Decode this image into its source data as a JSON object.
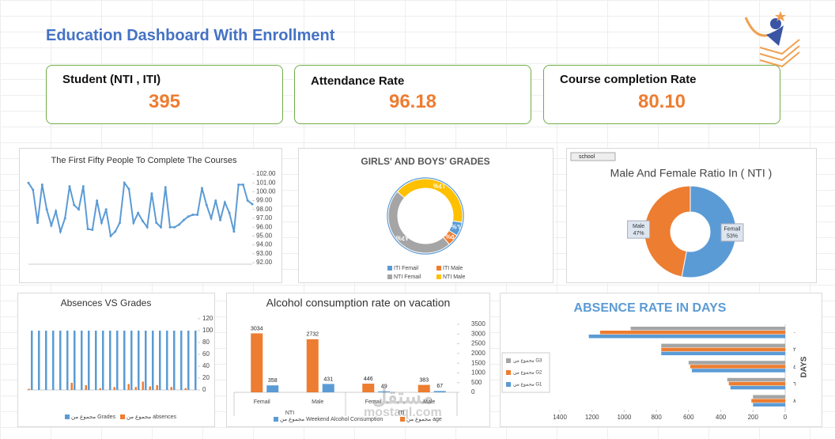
{
  "title": "Education Dashboard With Enrollment",
  "kpis": [
    {
      "label": "Student (NTI , ITI)",
      "value": "395"
    },
    {
      "label": "Attendance Rate",
      "value": "96.18"
    },
    {
      "label": "Course completion Rate",
      "value": "80.10"
    }
  ],
  "watermark": [
    "مستقل",
    "mostaql.com"
  ],
  "chart_data": [
    {
      "type": "line",
      "title": "The First Fifty People To Complete The Courses",
      "color": "#5b9bd5",
      "values": [
        101,
        100.2,
        96.5,
        100.8,
        98,
        96.2,
        97.8,
        95.5,
        97,
        100.6,
        98.5,
        98,
        100.6,
        95.8,
        95.7,
        99,
        96.5,
        98,
        95,
        95.5,
        96.5,
        101,
        100.3,
        96.5,
        97.6,
        96.7,
        96,
        99.8,
        96.5,
        96,
        100.5,
        96,
        96,
        96.3,
        96.8,
        97.2,
        97.4,
        97.4,
        100.4,
        98.5,
        97,
        99,
        96.8,
        98.8,
        97.6,
        95.5,
        100.8,
        100.8,
        99,
        98.6
      ],
      "ylim": [
        92,
        102
      ],
      "yticks": [
        {
          "value": 92,
          "label": "92.00"
        },
        {
          "value": 93,
          "label": "93.00"
        },
        {
          "value": 94,
          "label": "94.00"
        },
        {
          "value": 95,
          "label": "95.00"
        },
        {
          "value": 96,
          "label": "96.00"
        },
        {
          "value": 97,
          "label": "97.00"
        },
        {
          "value": 98,
          "label": "98.00"
        },
        {
          "value": 99,
          "label": "99.00"
        },
        {
          "value": 100,
          "label": "100.00"
        },
        {
          "value": 101,
          "label": "101.00"
        },
        {
          "value": 102,
          "label": "102.00"
        }
      ]
    },
    {
      "type": "donut",
      "title": "GIRLS' AND BOYS' GRADES",
      "categories": [
        "ITI Femail",
        "ITI Male",
        "NTI Femail",
        "NTI Male"
      ],
      "colors": [
        "#5b9bd5",
        "#ed7d31",
        "#a5a5a5",
        "#ffc000"
      ],
      "values": [
        6,
        5,
        47,
        41
      ],
      "value_labels": [
        "%٦",
        "%٥",
        "%٤٧",
        "%٤١"
      ]
    },
    {
      "type": "pie-ratio",
      "title": "Male And Female Ratio In ( NTI )",
      "filter_button": "school",
      "categories": [
        "Femail",
        "Male"
      ],
      "colors": [
        "#5b9bd5",
        "#ed7d31"
      ],
      "values": [
        53,
        47
      ],
      "value_labels": [
        "53%",
        "47%"
      ]
    },
    {
      "type": "bar",
      "title": "Absences VS Grades",
      "series": [
        {
          "name": "مجموع من Grades",
          "color": "#5b9bd5",
          "values": [
            100,
            100,
            100,
            100,
            100,
            100,
            100,
            100,
            100,
            100,
            100,
            100,
            100,
            100,
            100,
            100,
            100,
            100,
            100,
            100,
            100,
            100,
            100,
            100
          ]
        },
        {
          "name": "مجموع من absences",
          "color": "#ed7d31",
          "values": [
            2,
            0,
            0,
            0,
            0,
            0,
            12,
            0,
            8,
            0,
            3,
            0,
            5,
            0,
            10,
            5,
            14,
            6,
            8,
            0,
            5,
            0,
            3,
            0
          ]
        }
      ],
      "ylim": [
        0,
        120
      ],
      "yticks": [
        0,
        20,
        40,
        60,
        80,
        100,
        120
      ]
    },
    {
      "type": "grouped-bar",
      "title": "Alcohol consumption rate on vacation",
      "categories": [
        "Femail",
        "Male",
        "Femail",
        "Male"
      ],
      "groups": [
        "NTI",
        "ITI"
      ],
      "series": [
        {
          "name": "مجموع من age",
          "color": "#ed7d31",
          "values": [
            3034,
            2732,
            446,
            383
          ]
        },
        {
          "name": "مجموع من Weekend Alcohol Consumption",
          "color": "#5b9bd5",
          "values": [
            358,
            431,
            49,
            67
          ]
        }
      ],
      "ylim": [
        0,
        3500
      ],
      "yticks": [
        0,
        500,
        1000,
        1500,
        2000,
        2500,
        3000,
        3500
      ]
    },
    {
      "type": "hbar",
      "title": "ABSENCE RATE IN DAYS",
      "y_label": "DAYS",
      "x_reversed": true,
      "categories": [
        "٠",
        "٢",
        "٤",
        "٦",
        "٨"
      ],
      "series": [
        {
          "name": "مجموع من G1",
          "color": "#5b9bd5",
          "values": [
            1220,
            770,
            580,
            340,
            200
          ]
        },
        {
          "name": "مجموع من G2",
          "color": "#ed7d31",
          "values": [
            1150,
            770,
            590,
            350,
            210
          ]
        },
        {
          "name": "مجموع من G3",
          "color": "#a5a5a5",
          "values": [
            960,
            770,
            600,
            360,
            200
          ]
        }
      ],
      "xlim": [
        0,
        1400
      ],
      "xticks": [
        0,
        200,
        400,
        600,
        800,
        1000,
        1200,
        1400
      ]
    }
  ]
}
